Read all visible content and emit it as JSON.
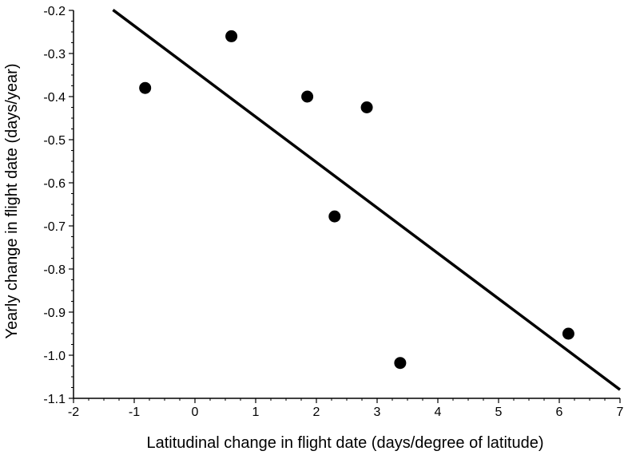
{
  "chart_data": {
    "type": "scatter",
    "title": "",
    "xlabel": "Latitudinal change in flight date (days/degree of latitude)",
    "ylabel": "Yearly change in flight date (days/year)",
    "xlim": [
      -2,
      7
    ],
    "ylim": [
      -1.1,
      -0.2
    ],
    "x_ticks": [
      "-2",
      "-1",
      "0",
      "1",
      "2",
      "3",
      "4",
      "5",
      "6",
      "7"
    ],
    "y_ticks": [
      "-0.2",
      "-0.3",
      "-0.4",
      "-0.5",
      "-0.6",
      "-0.7",
      "-0.8",
      "-0.9",
      "-1.0",
      "-1.1"
    ],
    "grid": false,
    "legend": "none",
    "series": [
      {
        "points": [
          {
            "x": -0.82,
            "y": -0.38
          },
          {
            "x": 0.6,
            "y": -0.26
          },
          {
            "x": 1.85,
            "y": -0.4
          },
          {
            "x": 2.3,
            "y": -0.678
          },
          {
            "x": 2.83,
            "y": -0.425
          },
          {
            "x": 3.38,
            "y": -1.018
          },
          {
            "x": 6.15,
            "y": -0.95
          }
        ],
        "color": "#000000"
      }
    ],
    "fit_line": {
      "x": [
        -1.35,
        7.0
      ],
      "y": [
        -0.199,
        -1.08
      ],
      "color": "#000000"
    }
  }
}
